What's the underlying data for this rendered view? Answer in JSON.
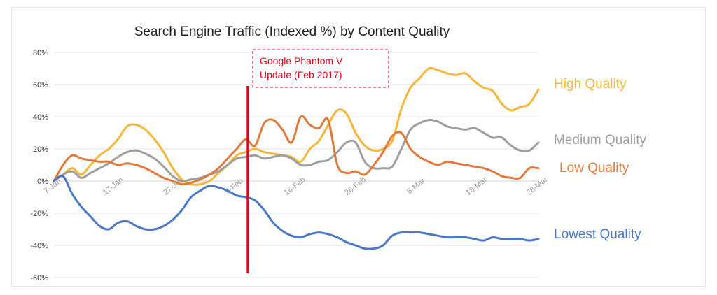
{
  "chart_data": {
    "type": "line",
    "title": "Search Engine Traffic (Indexed %)  by Content Quality",
    "xlabel": "",
    "ylabel": "",
    "y_unit": "%",
    "ylim": [
      -60,
      80
    ],
    "yticks": [
      -60,
      -40,
      -20,
      0,
      20,
      40,
      60,
      80
    ],
    "grid": "horizontal",
    "legend": "direct labels at right end of lines",
    "x_ticks": [
      "7-Jan",
      "17-Jan",
      "27-Jan",
      "6-Feb",
      "16-Feb",
      "26-Feb",
      "8-Mar",
      "18-Mar",
      "28-Mar"
    ],
    "x_start": "7-Jan",
    "x_end": "28-Mar",
    "annotation": {
      "text_lines": [
        "Google Phantom V",
        "Update (Feb 2017)"
      ],
      "x": "8-Feb",
      "color": "#e0001b"
    },
    "series": [
      {
        "name": "High Quality",
        "color": "#f5b73b",
        "values": [
          0,
          4,
          8,
          4,
          10,
          16,
          20,
          26,
          34,
          35,
          32,
          26,
          18,
          8,
          1,
          -2,
          -2,
          0,
          5,
          10,
          16,
          18,
          20,
          18,
          17,
          16,
          15,
          12,
          20,
          25,
          35,
          44,
          42,
          30,
          22,
          19,
          20,
          25,
          45,
          58,
          64,
          70,
          69,
          67,
          66,
          67,
          62,
          58,
          56,
          48,
          44,
          46,
          48,
          57
        ]
      },
      {
        "name": "Medium Quality",
        "color": "#9e9e9e",
        "values": [
          0,
          4,
          6,
          2,
          5,
          8,
          11,
          15,
          18,
          19,
          17,
          14,
          9,
          3,
          0,
          1,
          2,
          4,
          6,
          10,
          14,
          15,
          16,
          14,
          15,
          16,
          14,
          10,
          10,
          12,
          13,
          18,
          24,
          24,
          12,
          8,
          8,
          9,
          20,
          32,
          36,
          38,
          37,
          34,
          33,
          32,
          33,
          30,
          27,
          27,
          22,
          19,
          19,
          24
        ]
      },
      {
        "name": "Low Quality",
        "color": "#e07a3c",
        "values": [
          0,
          10,
          16,
          14,
          13,
          12,
          12,
          10,
          11,
          10,
          8,
          5,
          2,
          0,
          -2,
          -1,
          1,
          4,
          8,
          14,
          20,
          26,
          22,
          36,
          38,
          32,
          24,
          40,
          35,
          33,
          38,
          10,
          5,
          6,
          4,
          10,
          18,
          28,
          30,
          20,
          15,
          12,
          10,
          12,
          11,
          10,
          9,
          8,
          6,
          3,
          2,
          2,
          8,
          8
        ]
      },
      {
        "name": "Lowest Quality",
        "color": "#4a78c6",
        "values": [
          0,
          3,
          -8,
          -16,
          -22,
          -28,
          -30,
          -26,
          -25,
          -28,
          -30,
          -30,
          -28,
          -24,
          -18,
          -10,
          -6,
          -3,
          -4,
          -6,
          -9,
          -10,
          -12,
          -18,
          -26,
          -31,
          -34,
          -35,
          -33,
          -32,
          -33,
          -35,
          -38,
          -40,
          -42,
          -42,
          -40,
          -34,
          -32,
          -32,
          -32,
          -33,
          -34,
          -35,
          -35,
          -35,
          -36,
          -37,
          -35,
          -36,
          -36,
          -36,
          -37,
          -36
        ]
      }
    ]
  }
}
